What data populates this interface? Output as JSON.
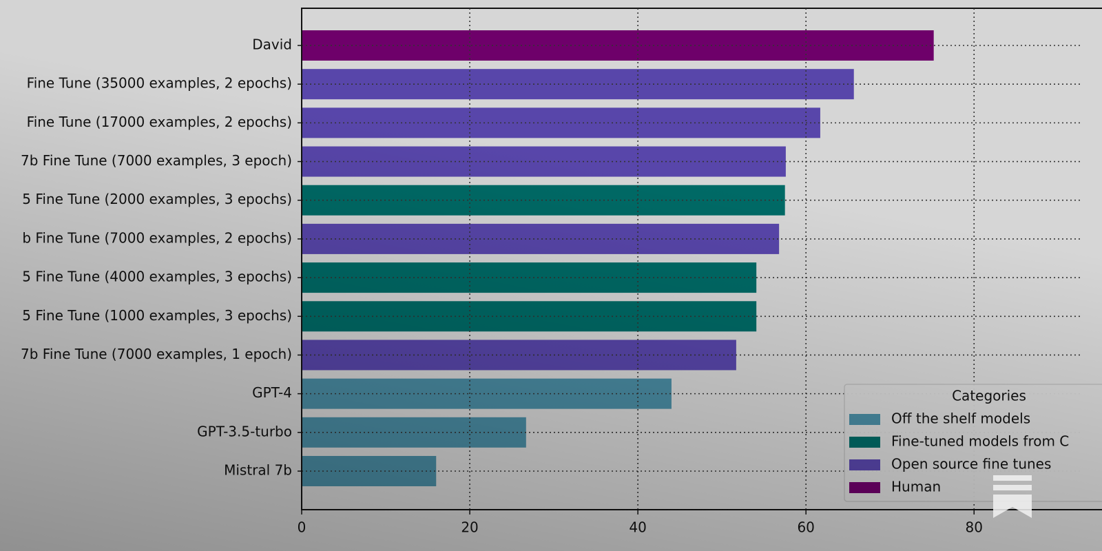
{
  "chart_data": {
    "type": "barh",
    "categories": [
      "David",
      "Fine Tune (35000 examples, 2 epochs)",
      "Fine Tune (17000 examples, 2 epochs)",
      "7b Fine Tune (7000 examples, 3 epoch)",
      "5 Fine Tune (2000 examples, 3 epochs)",
      "b Fine Tune (7000 examples, 2 epochs)",
      "5 Fine Tune (4000 examples, 3 epochs)",
      "5 Fine Tune (1000 examples, 3 epochs)",
      "7b Fine Tune (7000 examples, 1 epoch)",
      "GPT-4",
      "GPT-3.5-turbo",
      "Mistral 7b"
    ],
    "series": [
      {
        "name": "Off the shelf models",
        "color": "#4a8ca3",
        "values": [
          null,
          null,
          null,
          null,
          null,
          null,
          null,
          null,
          null,
          44.0,
          26.7,
          16.0
        ]
      },
      {
        "name": "Fine-tuned models from C",
        "color": "#006a66",
        "values": [
          null,
          null,
          null,
          null,
          57.5,
          null,
          54.1,
          54.1,
          null,
          null,
          null,
          null
        ]
      },
      {
        "name": "Open source fine tunes",
        "color": "#5846aa",
        "values": [
          null,
          65.7,
          61.7,
          57.6,
          null,
          56.8,
          null,
          null,
          51.7,
          null,
          null,
          null
        ]
      },
      {
        "name": "Human",
        "color": "#6e006a",
        "values": [
          75.2,
          null,
          null,
          null,
          null,
          null,
          null,
          null,
          null,
          null,
          null,
          null
        ]
      }
    ],
    "legend_title": "Categories",
    "legend": "lower right",
    "xlim": [
      0,
      92.6
    ],
    "xticks": [
      0,
      20,
      40,
      60,
      80
    ],
    "grid": true
  }
}
